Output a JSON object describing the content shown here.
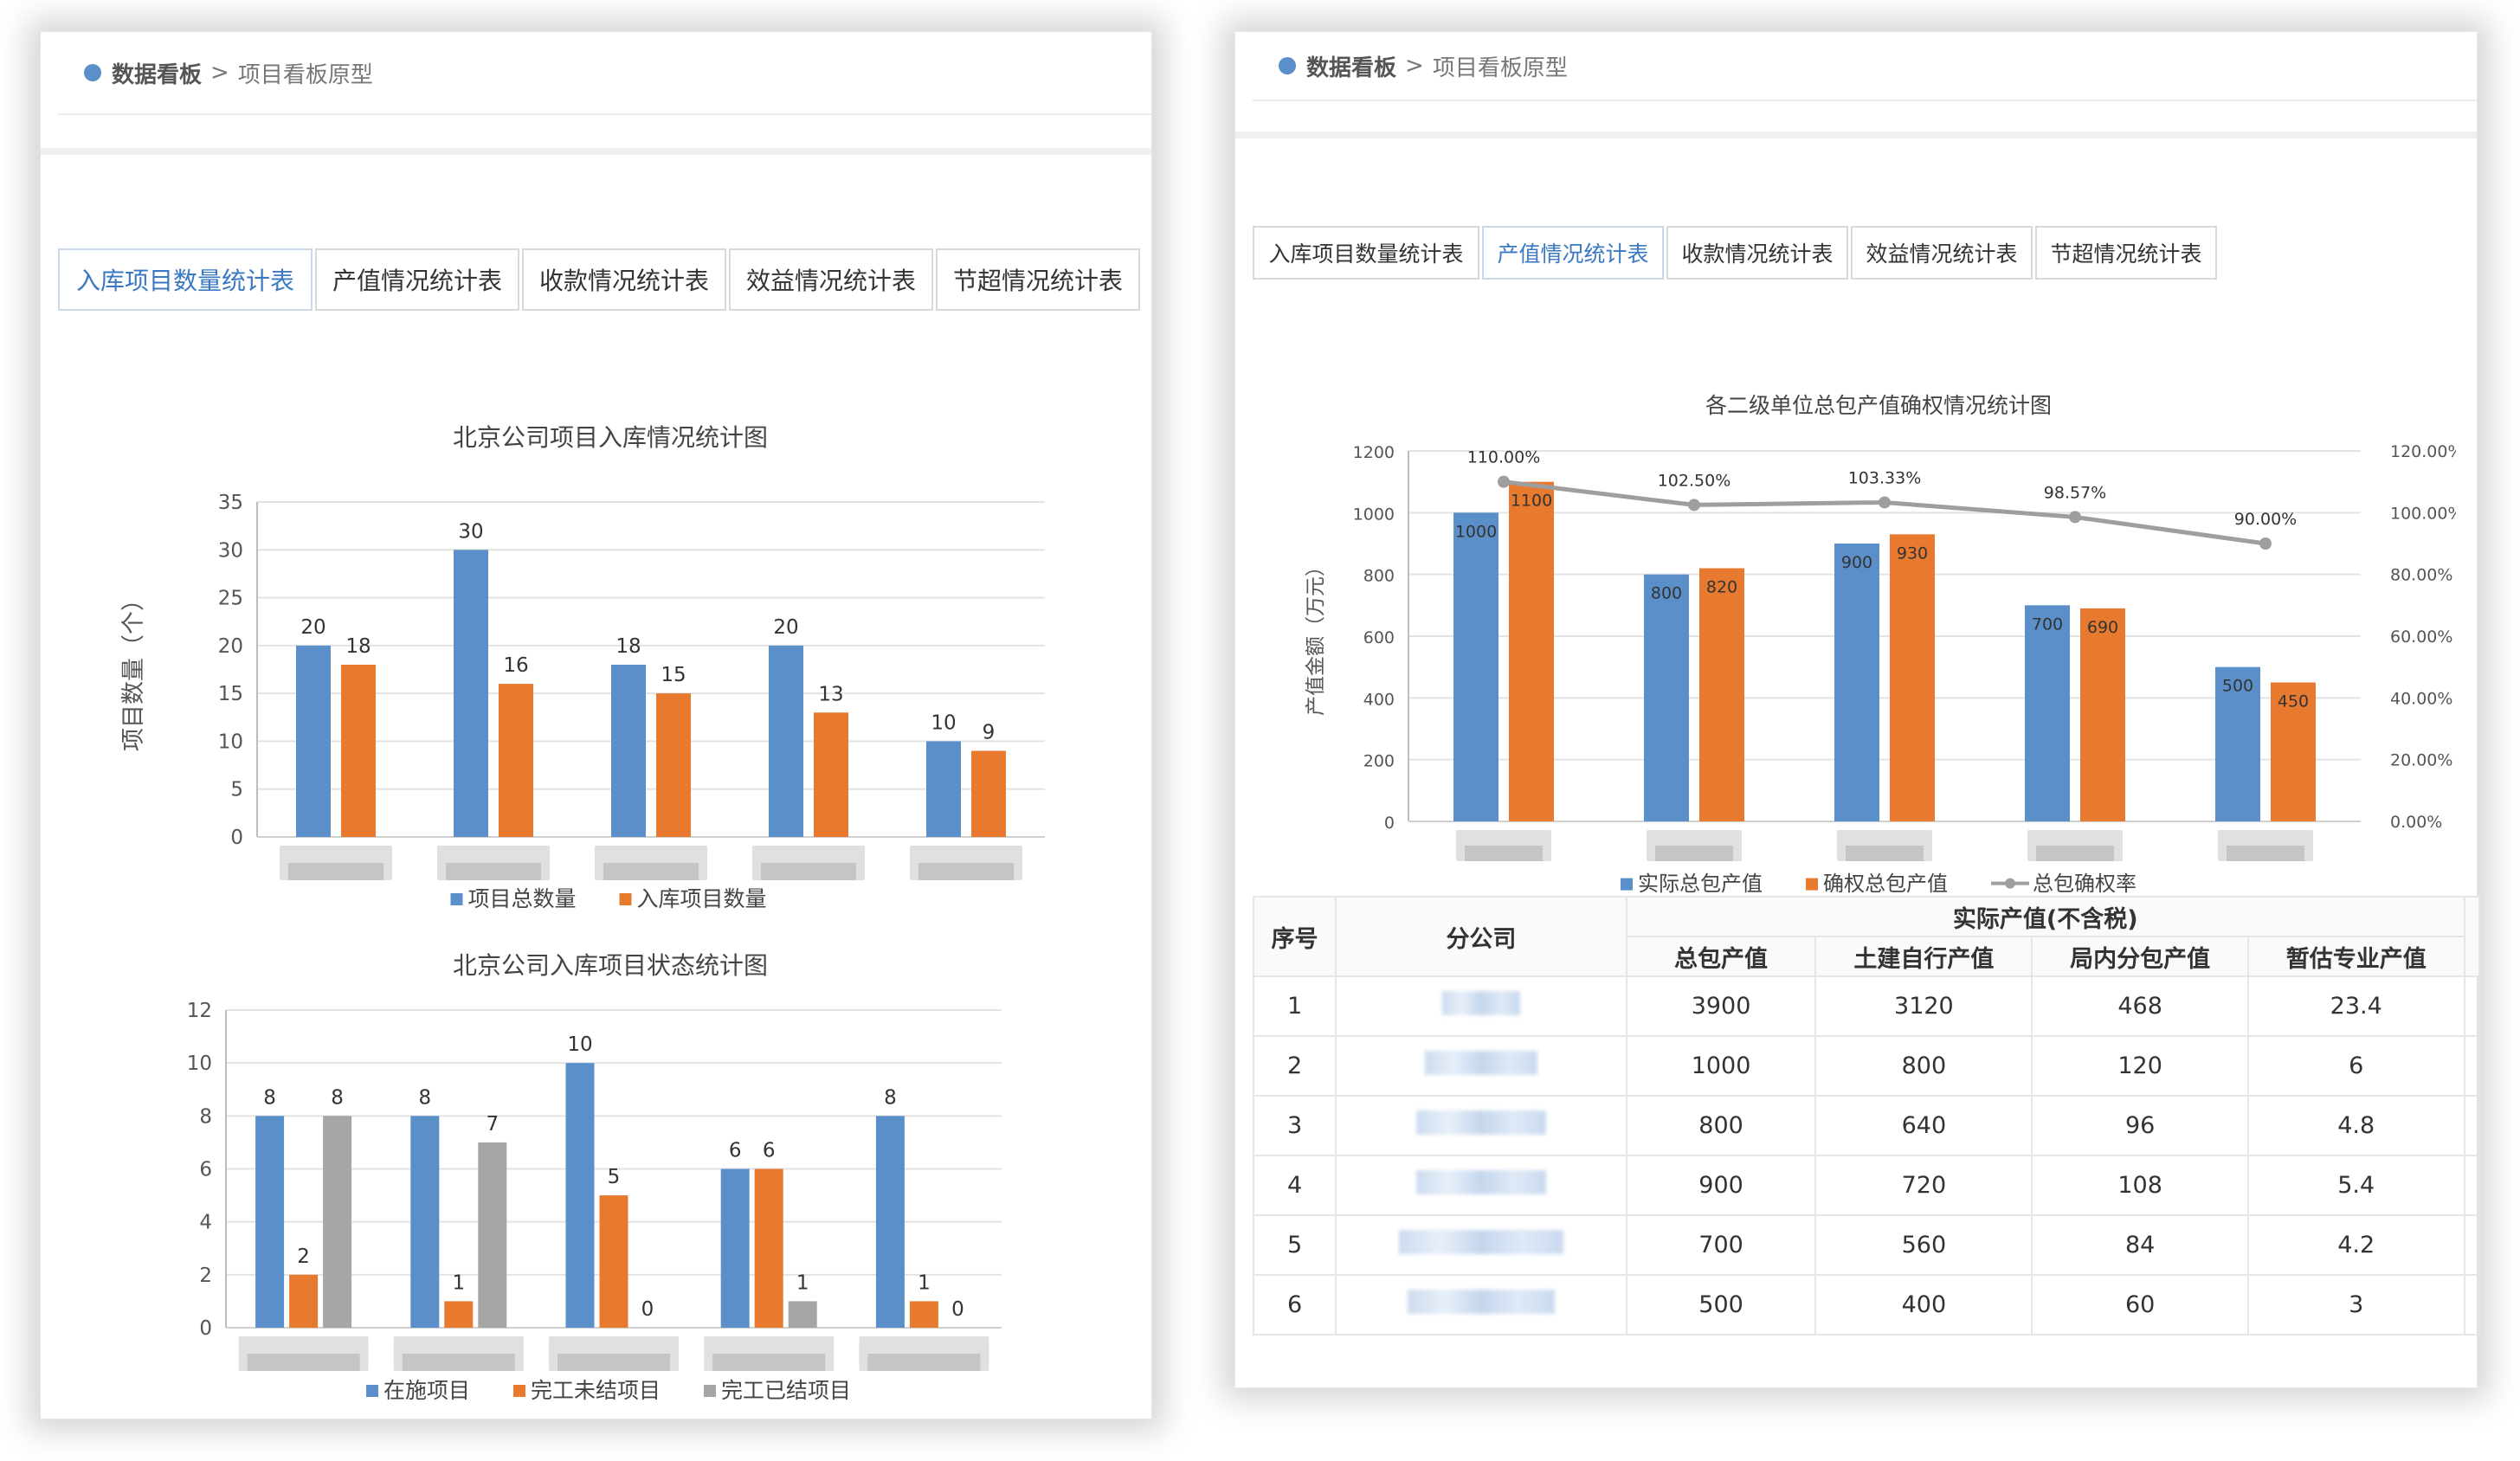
{
  "left": {
    "breadcrumb": {
      "root": "数据看板",
      "sep": ">",
      "current": "项目看板原型"
    },
    "tabs": [
      "入库项目数量统计表",
      "产值情况统计表",
      "收款情况统计表",
      "效益情况统计表",
      "节超情况统计表"
    ],
    "active_tab": 0
  },
  "right": {
    "breadcrumb": {
      "root": "数据看板",
      "sep": ">",
      "current": "项目看板原型"
    },
    "tabs": [
      "入库项目数量统计表",
      "产值情况统计表",
      "收款情况统计表",
      "效益情况统计表",
      "节超情况统计表"
    ],
    "active_tab": 1,
    "table": {
      "h_seq": "序号",
      "h_company": "分公司",
      "h_group": "实际产值(不含税)",
      "h_cols": [
        "总包产值",
        "土建自行产值",
        "局内分包产值",
        "暂估专业产值"
      ],
      "rows": [
        {
          "seq": "1",
          "v": [
            "3900",
            "3120",
            "468",
            "23.4"
          ]
        },
        {
          "seq": "2",
          "v": [
            "1000",
            "800",
            "120",
            "6"
          ]
        },
        {
          "seq": "3",
          "v": [
            "800",
            "640",
            "96",
            "4.8"
          ]
        },
        {
          "seq": "4",
          "v": [
            "900",
            "720",
            "108",
            "5.4"
          ]
        },
        {
          "seq": "5",
          "v": [
            "700",
            "560",
            "84",
            "4.2"
          ]
        },
        {
          "seq": "6",
          "v": [
            "500",
            "400",
            "60",
            "3"
          ]
        }
      ]
    }
  },
  "chart_data": [
    {
      "type": "bar",
      "title": "北京公司项目入库情况统计图",
      "ylabel": "项目数量（个）",
      "ylim": [
        0,
        35
      ],
      "yticks": [
        0,
        5,
        10,
        15,
        20,
        25,
        30,
        35
      ],
      "categories": [
        "",
        "",
        "",
        "",
        ""
      ],
      "series": [
        {
          "name": "项目总数量",
          "values": [
            20,
            30,
            18,
            20,
            10
          ]
        },
        {
          "name": "入库项目数量",
          "values": [
            18,
            16,
            15,
            13,
            9
          ]
        }
      ],
      "legend": "bottom",
      "grid": true
    },
    {
      "type": "bar",
      "title": "北京公司入库项目状态统计图",
      "ylim": [
        0,
        12
      ],
      "yticks": [
        0,
        2,
        4,
        6,
        8,
        10,
        12
      ],
      "categories": [
        "",
        "",
        "",
        "",
        ""
      ],
      "series": [
        {
          "name": "在施项目",
          "values": [
            8,
            8,
            10,
            6,
            8
          ]
        },
        {
          "name": "完工未结项目",
          "values": [
            2,
            1,
            5,
            6,
            1
          ]
        },
        {
          "name": "完工已结项目",
          "values": [
            8,
            7,
            0,
            1,
            0
          ]
        }
      ],
      "legend": "bottom",
      "grid": true
    },
    {
      "type": "bar",
      "title": "各二级单位总包产值确权情况统计图",
      "ylabel": "产值金额（万元）",
      "ylim": [
        0,
        1200
      ],
      "yticks": [
        0,
        200,
        400,
        600,
        800,
        1000,
        1200
      ],
      "y2lim": [
        0,
        120
      ],
      "y2ticks": [
        "0.00%",
        "20.00%",
        "40.00%",
        "60.00%",
        "80.00%",
        "100.00%",
        "120.00%"
      ],
      "categories": [
        "",
        "",
        "",
        "",
        ""
      ],
      "series": [
        {
          "name": "实际总包产值",
          "values": [
            1000,
            800,
            900,
            700,
            500
          ]
        },
        {
          "name": "确权总包产值",
          "values": [
            1100,
            820,
            930,
            690,
            450
          ]
        },
        {
          "name": "总包确权率",
          "type": "line",
          "values": [
            110.0,
            102.5,
            103.33,
            98.57,
            90.0
          ],
          "labels": [
            "110.00%",
            "102.50%",
            "103.33%",
            "98.57%",
            "90.00%"
          ]
        }
      ],
      "legend": "bottom",
      "grid": true
    }
  ],
  "colors": {
    "blue": "#5b8fc9",
    "orange": "#e87a30",
    "gray": "#a6a6a6",
    "line": "#9e9e9e",
    "active_tab": "#3a78c2"
  }
}
